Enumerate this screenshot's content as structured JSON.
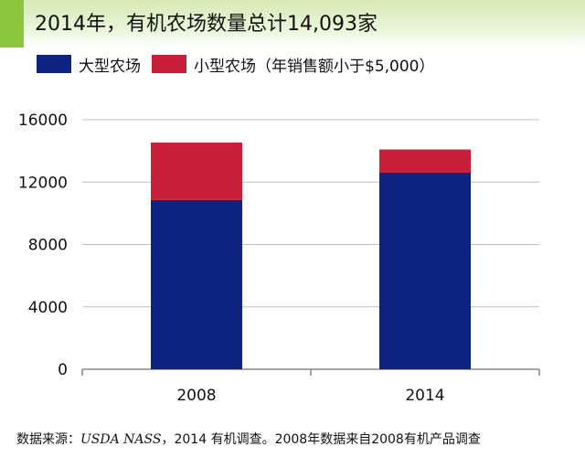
{
  "title": "2014年，有机农场数量总计14,093家",
  "legend": [
    {
      "label": "大型农场",
      "color": "#0d237f"
    },
    {
      "label": "小型农场（年销售额小于$5,000）",
      "color": "#c81f3a"
    }
  ],
  "footer": {
    "prefix": "数据来源：",
    "source": "USDA NASS",
    "suffix": "，2014 有机调查。2008年数据来自2008有机产品调查"
  },
  "colors": {
    "large": "#0d237f",
    "small": "#c81f3a",
    "axis": "#888888",
    "grid": "#bfbfbf",
    "accent": "#8cc63f"
  },
  "chart_data": {
    "type": "bar",
    "stacked": true,
    "categories": [
      "2008",
      "2014"
    ],
    "series": [
      {
        "name": "大型农场",
        "values": [
          10850,
          12600
        ]
      },
      {
        "name": "小型农场（年销售额小于$5,000）",
        "values": [
          3690,
          1493
        ]
      }
    ],
    "ylim": [
      0,
      16000
    ],
    "yticks": [
      "0",
      "4000",
      "8000",
      "12000",
      "16000"
    ],
    "grid": true,
    "legend_position": "top-left",
    "title": "2014年，有机农场数量总计14,093家"
  }
}
